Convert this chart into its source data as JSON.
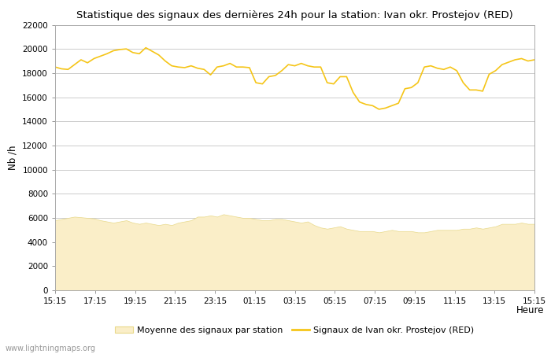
{
  "title": "Statistique des signaux des dernières 24h pour la station: Ivan okr. Prostejov (RED)",
  "xlabel": "Heure",
  "ylabel": "Nb /h",
  "ylim": [
    0,
    22000
  ],
  "yticks": [
    0,
    2000,
    4000,
    6000,
    8000,
    10000,
    12000,
    14000,
    16000,
    18000,
    20000,
    22000
  ],
  "x_labels": [
    "15:15",
    "17:15",
    "19:15",
    "21:15",
    "23:15",
    "01:15",
    "03:15",
    "05:15",
    "07:15",
    "09:15",
    "11:15",
    "13:15",
    "15:15"
  ],
  "watermark": "www.lightningmaps.org",
  "bg_color": "#ffffff",
  "plot_bg_color": "#ffffff",
  "grid_color": "#cccccc",
  "line_color": "#f5c518",
  "fill_color": "#faeec8",
  "fill_edge_color": "#e8d98a",
  "legend_label_avg": "Moyenne des signaux par station",
  "legend_label_station": "Signaux de Ivan okr. Prostejov (RED)",
  "station_values": [
    18500,
    18350,
    18300,
    18700,
    19100,
    18850,
    19200,
    19400,
    19600,
    19850,
    19950,
    20000,
    19700,
    19600,
    20100,
    19800,
    19500,
    19000,
    18600,
    18500,
    18450,
    18600,
    18400,
    18300,
    17850,
    18500,
    18600,
    18800,
    18500,
    18500,
    18450,
    17200,
    17100,
    17700,
    17800,
    18200,
    18700,
    18600,
    18800,
    18600,
    18500,
    18500,
    17200,
    17100,
    17700,
    17700,
    16400,
    15600,
    15400,
    15300,
    15000,
    15100,
    15300,
    15500,
    16700,
    16800,
    17200,
    18500,
    18600,
    18400,
    18300,
    18500,
    18200,
    17200,
    16600,
    16600,
    16500,
    17900,
    18200,
    18700,
    18900,
    19100,
    19200,
    19000,
    19100
  ],
  "avg_values": [
    5800,
    5900,
    6000,
    6100,
    6050,
    6000,
    5950,
    5800,
    5700,
    5600,
    5700,
    5800,
    5600,
    5500,
    5600,
    5500,
    5400,
    5500,
    5400,
    5600,
    5700,
    5800,
    6100,
    6100,
    6200,
    6100,
    6300,
    6200,
    6100,
    6000,
    6000,
    5900,
    5800,
    5800,
    5900,
    5900,
    5800,
    5700,
    5600,
    5700,
    5400,
    5200,
    5100,
    5200,
    5300,
    5100,
    5000,
    4900,
    4900,
    4900,
    4800,
    4900,
    5000,
    4900,
    4900,
    4900,
    4800,
    4800,
    4900,
    5000,
    5000,
    5000,
    5000,
    5100,
    5100,
    5200,
    5100,
    5200,
    5300,
    5500,
    5500,
    5500,
    5600,
    5500,
    5500
  ]
}
